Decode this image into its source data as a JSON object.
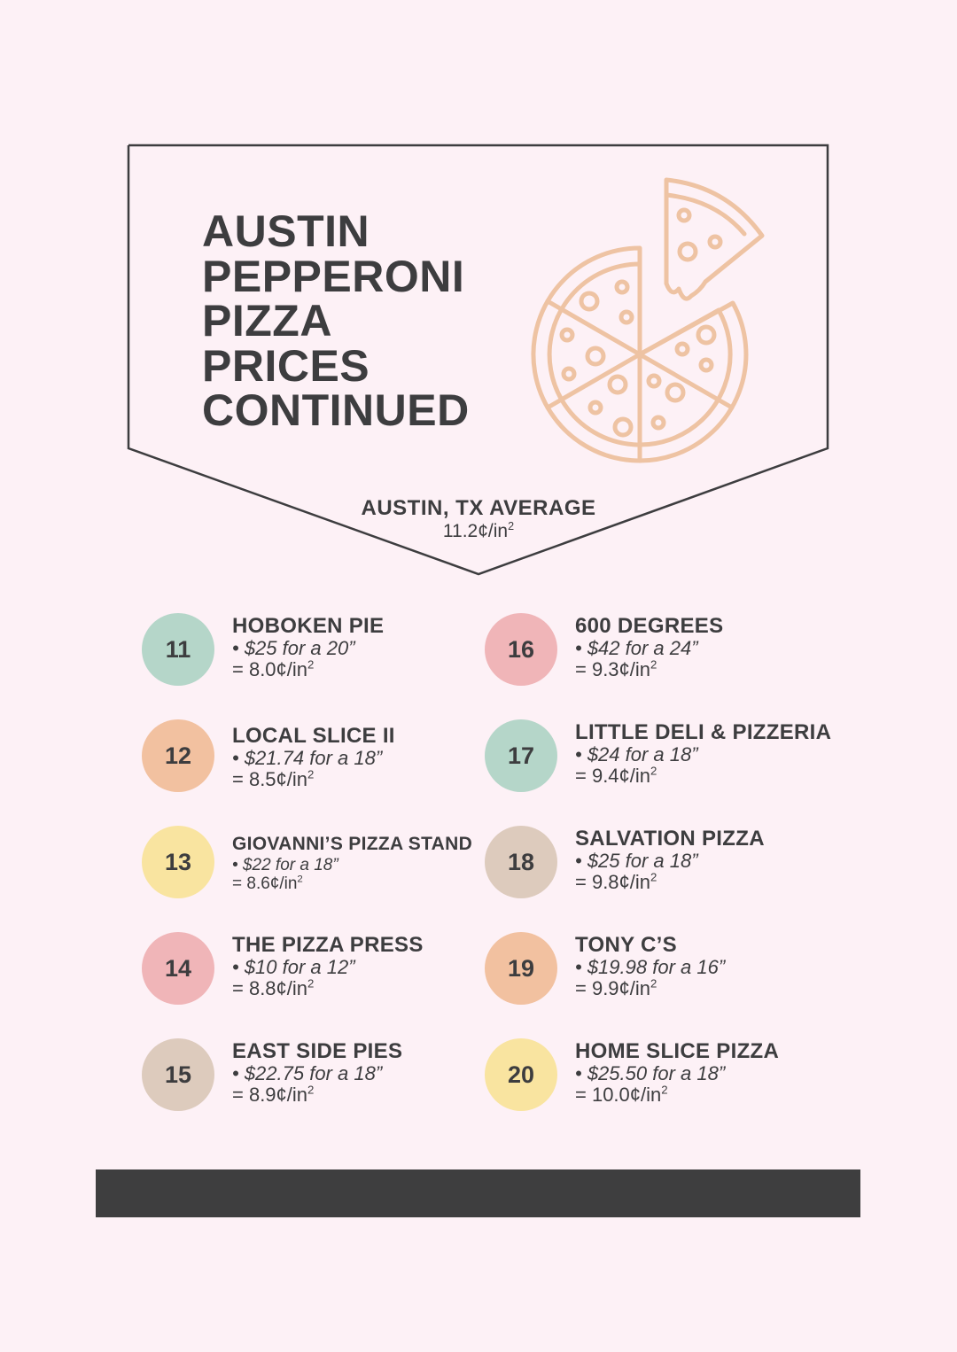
{
  "title_lines": [
    "AUSTIN",
    "PEPPERONI",
    "PIZZA",
    "PRICES",
    "CONTINUED"
  ],
  "average": {
    "label": "AUSTIN, TX AVERAGE",
    "value": "11.2¢/in"
  },
  "colors": {
    "background": "#fdf1f6",
    "text": "#3d3d3f",
    "pizza_icon": "#eec3a3",
    "mint": "#b5d6c9",
    "peach": "#f2c1a0",
    "yellow": "#f9e4a0",
    "pink": "#f0b5b8",
    "tan": "#ddcbbd",
    "footer_bar": "#3e3e3f"
  },
  "icons": {
    "pizza": "pizza-icon"
  },
  "entries": [
    {
      "rank": "11",
      "name": "HOBOKEN PIE",
      "price": "• $25 for a 20”",
      "cost": "= 8.0¢/in"
    },
    {
      "rank": "12",
      "name": "LOCAL SLICE II",
      "price": "• $21.74 for a 18”",
      "cost": "= 8.5¢/in"
    },
    {
      "rank": "13",
      "name": "GIOVANNI’S PIZZA STAND",
      "price": "• $22 for a 18”",
      "cost": "= 8.6¢/in"
    },
    {
      "rank": "14",
      "name": "THE PIZZA PRESS",
      "price": "• $10 for a 12”",
      "cost": "= 8.8¢/in"
    },
    {
      "rank": "15",
      "name": "EAST SIDE PIES",
      "price": "• $22.75 for a 18”",
      "cost": "= 8.9¢/in"
    },
    {
      "rank": "16",
      "name": "600 DEGREES",
      "price": "• $42 for a 24”",
      "cost": "= 9.3¢/in"
    },
    {
      "rank": "17",
      "name": "LITTLE DELI & PIZZERIA",
      "price": "• $24 for a 18”",
      "cost": "= 9.4¢/in"
    },
    {
      "rank": "18",
      "name": "SALVATION PIZZA",
      "price": "• $25 for a 18”",
      "cost": "= 9.8¢/in"
    },
    {
      "rank": "19",
      "name": "TONY C’S",
      "price": "• $19.98 for a 16”",
      "cost": "= 9.9¢/in"
    },
    {
      "rank": "20",
      "name": "HOME SLICE PIZZA",
      "price": "• $25.50 for a 18”",
      "cost": "= 10.0¢/in"
    }
  ]
}
